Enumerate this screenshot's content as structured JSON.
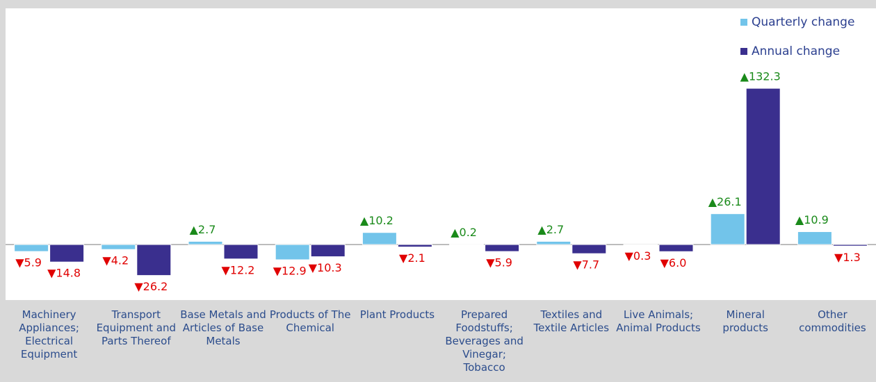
{
  "chart_data": {
    "type": "bar",
    "categories": [
      "Machinery Appliances; Electrical Equipment",
      "Transport Equipment and Parts Thereof",
      "Base Metals and Articles of Base Metals",
      "Products of The Chemical",
      "Plant Products",
      "Prepared Foodstuffs; Beverages and Vinegar; Tobacco",
      "Textiles and Textile Articles",
      "Live Animals; Animal Products",
      "Mineral products",
      "Other commodities"
    ],
    "series": [
      {
        "name": "Quarterly change",
        "color": "#72c4ea",
        "values": [
          -5.9,
          -4.2,
          2.7,
          -12.9,
          10.2,
          0.2,
          2.7,
          -0.3,
          26.1,
          10.9
        ],
        "value_labels": [
          "▼5.9",
          "▼4.2",
          "▲2.7",
          "▼12.9",
          "▲10.2",
          "▲0.2",
          "▲2.7",
          "▼0.3",
          "▲26.1",
          "▲10.9"
        ]
      },
      {
        "name": "Annual change",
        "color": "#3a2f8e",
        "values": [
          -14.8,
          -26.2,
          -12.2,
          -10.3,
          -2.1,
          -5.9,
          -7.7,
          -6.0,
          132.3,
          -1.3
        ],
        "value_labels": [
          "▼14.8",
          "▼26.2",
          "▼12.2",
          "▼10.3",
          "▼2.1",
          "▼5.9",
          "▼7.7",
          "▼6.0",
          "▲132.3",
          "▼1.3"
        ]
      }
    ],
    "ylim": [
      -47,
      200
    ],
    "legend": "top-right"
  }
}
